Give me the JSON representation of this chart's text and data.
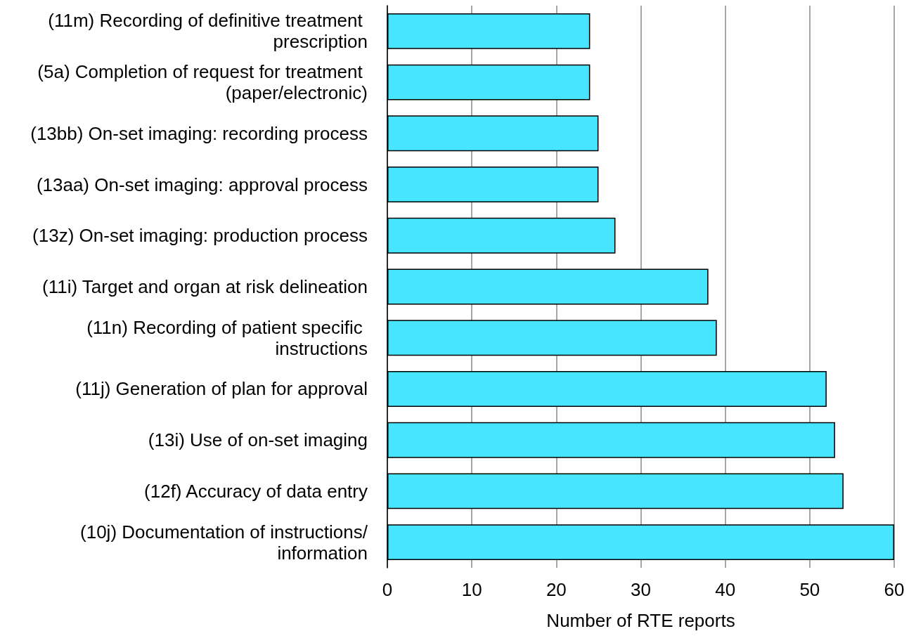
{
  "chart_data": {
    "type": "bar",
    "orientation": "horizontal",
    "xlabel": "Number of RTE reports",
    "categories": [
      "(11m) Recording of definitive treatment prescription",
      "(5a) Completion of request for treatment (paper/electronic)",
      "(13bb) On-set imaging: recording process",
      "(13aa) On-set imaging: approval process",
      "(13z) On-set imaging: production process",
      "(11i) Target and organ at risk delineation",
      "(11n) Recording of patient specific instructions",
      "(11j) Generation of plan for approval",
      "(13i) Use of on-set imaging",
      "(12f) Accuracy of data entry",
      "(10j) Documentation of instructions/information"
    ],
    "values": [
      24,
      24,
      25,
      25,
      27,
      38,
      39,
      52,
      53,
      54,
      60
    ],
    "color": "#47e5ff",
    "xlim": [
      0,
      60
    ],
    "xticks": [
      0,
      10,
      20,
      30,
      40,
      50,
      60
    ],
    "grid": "x"
  }
}
